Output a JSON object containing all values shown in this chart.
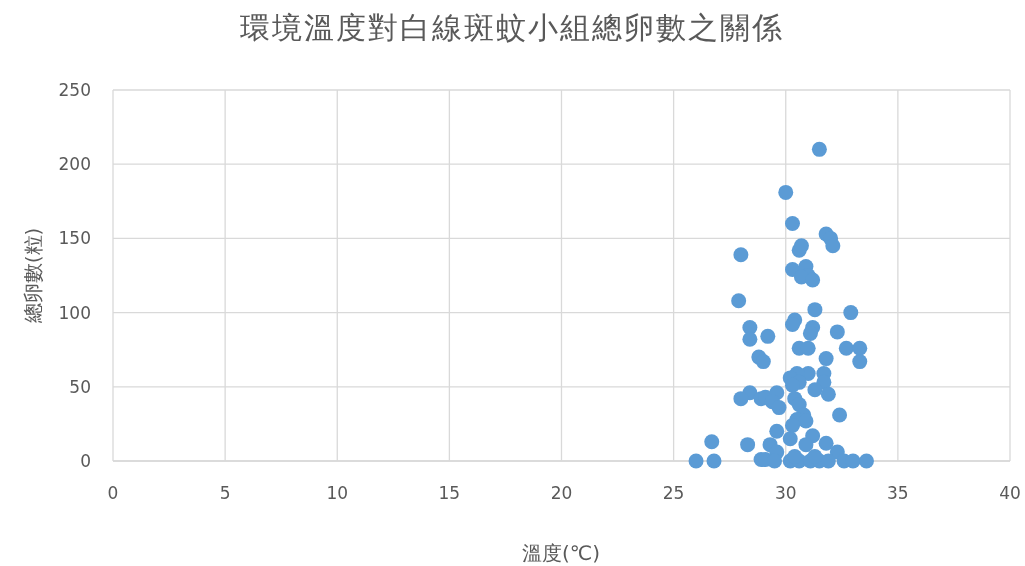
{
  "chart_data": {
    "type": "scatter",
    "title": "環境溫度對白線斑蚊小組總卵數之關係",
    "xlabel": "溫度(℃)",
    "ylabel": "總卵數(粒)",
    "xlim": [
      0,
      40
    ],
    "ylim": [
      0,
      250
    ],
    "xticks": [
      0,
      5,
      10,
      15,
      20,
      25,
      30,
      35,
      40
    ],
    "yticks": [
      0,
      50,
      100,
      150,
      200,
      250
    ],
    "grid": true,
    "marker": "circle",
    "series": [
      {
        "color": "#5b9bd5",
        "x": [
          30.0,
          31.5,
          30.3,
          28.0,
          30.6,
          30.7,
          31.8,
          32.0,
          32.1,
          30.3,
          30.9,
          31.0,
          30.7,
          31.2,
          27.9,
          31.3,
          32.9,
          30.4,
          30.3,
          28.4,
          31.2,
          31.1,
          32.3,
          28.4,
          29.2,
          30.6,
          31.0,
          32.7,
          33.3,
          28.8,
          31.8,
          29.0,
          33.3,
          31.0,
          31.7,
          30.5,
          30.2,
          31.7,
          30.6,
          30.3,
          31.3,
          31.9,
          28.4,
          28.0,
          28.9,
          29.1,
          29.6,
          29.4,
          30.4,
          29.7,
          30.6,
          32.4,
          30.8,
          30.5,
          30.9,
          29.6,
          30.3,
          31.2,
          30.2,
          26.7,
          28.3,
          29.3,
          31.8,
          30.9,
          32.3,
          29.6,
          26.0,
          26.8,
          28.9,
          29.1,
          29.5,
          30.2,
          30.6,
          31.1,
          31.5,
          31.9,
          32.6,
          33.0,
          33.6,
          30.4,
          31.3
        ],
        "values": [
          181,
          210,
          160,
          139,
          142,
          145,
          153,
          150,
          145,
          129,
          131,
          125,
          124,
          122,
          108,
          102,
          100,
          95,
          92,
          90,
          90,
          86,
          87,
          82,
          84,
          76,
          76,
          76,
          76,
          70,
          69,
          67,
          67,
          59,
          59,
          59,
          56,
          53,
          53,
          51,
          48,
          45,
          46,
          42,
          42,
          43,
          46,
          40,
          42,
          36,
          38,
          31,
          31,
          28,
          27,
          20,
          24,
          17,
          15,
          13,
          11,
          11,
          12,
          11,
          6,
          6,
          0,
          0,
          1,
          1,
          0,
          0,
          0,
          0,
          0,
          0,
          0,
          0,
          0,
          3,
          3
        ]
      }
    ]
  }
}
